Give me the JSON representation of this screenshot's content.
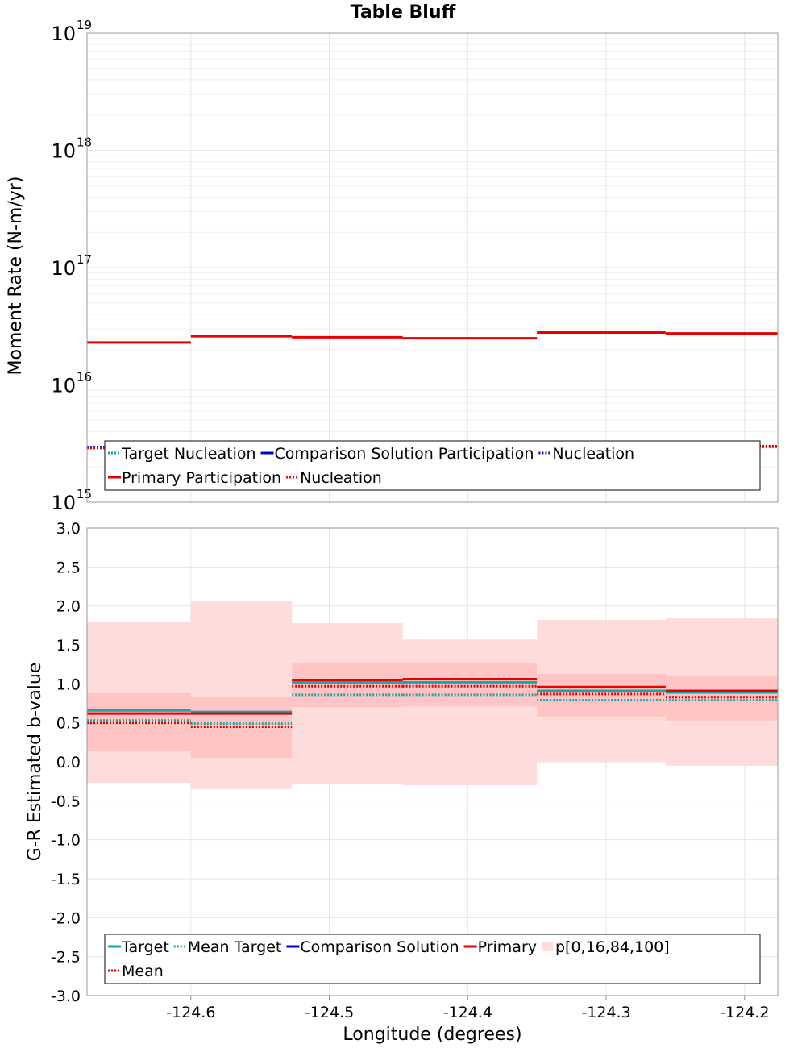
{
  "title": "Table Bluff",
  "colors": {
    "target": "#1aa4a4",
    "comparison": "#0000cc",
    "primary": "#e60000",
    "band_outer": "#ffdcdc",
    "band_inner": "#ffc4c4",
    "grid": "#e6e6e6"
  },
  "chart_data": [
    {
      "type": "line",
      "ylabel": "Moment Rate (N-m/yr)",
      "y_scale": "log",
      "ylim": [
        1000000000000000.0,
        1e+19
      ],
      "y_ticks": [
        {
          "base": "10",
          "exp": "15",
          "value": 1000000000000000.0
        },
        {
          "base": "10",
          "exp": "16",
          "value": 1e+16
        },
        {
          "base": "10",
          "exp": "17",
          "value": 1e+17
        },
        {
          "base": "10",
          "exp": "18",
          "value": 1e+18
        },
        {
          "base": "10",
          "exp": "19",
          "value": 1e+19
        }
      ],
      "xlim": [
        -124.675,
        -124.176
      ],
      "bins": [
        [
          -124.675,
          -124.6
        ],
        [
          -124.6,
          -124.527
        ],
        [
          -124.527,
          -124.447
        ],
        [
          -124.447,
          -124.35
        ],
        [
          -124.35,
          -124.257
        ],
        [
          -124.257,
          -124.176
        ]
      ],
      "series": [
        {
          "name": "Target Nucleation",
          "style": "dotted",
          "color": "target",
          "values": [
            2900000000000000.0,
            2900000000000000.0,
            2950000000000000.0,
            2950000000000000.0,
            3000000000000000.0,
            2950000000000000.0
          ]
        },
        {
          "name": "Comparison Solution Participation",
          "style": "solid",
          "color": "comparison",
          "values": [
            null,
            null,
            null,
            null,
            null,
            null
          ]
        },
        {
          "name": "Nucleation",
          "style": "dotted",
          "color": "comparison",
          "values": [
            2950000000000000.0,
            3000000000000000.0,
            3000000000000000.0,
            3050000000000000.0,
            3100000000000000.0,
            3000000000000000.0
          ]
        },
        {
          "name": "Primary Participation",
          "style": "solid",
          "color": "primary",
          "values": [
            2.3e+16,
            2.6e+16,
            2.55e+16,
            2.5e+16,
            2.8e+16,
            2.75e+16
          ]
        },
        {
          "name": "Nucleation",
          "style": "dotted",
          "color": "primary",
          "values": [
            2900000000000000.0,
            3250000000000000.0,
            3250000000000000.0,
            3000000000000000.0,
            3000000000000000.0,
            3000000000000000.0
          ]
        }
      ],
      "legend": {
        "placement": "bottom",
        "rows": [
          [
            {
              "label": "Target Nucleation",
              "style": "dotted",
              "color": "target"
            },
            {
              "label": "Comparison Solution Participation",
              "style": "solid",
              "color": "comparison"
            },
            {
              "label": "Nucleation",
              "style": "dotted",
              "color": "comparison"
            }
          ],
          [
            {
              "label": "Primary Participation",
              "style": "solid",
              "color": "primary"
            },
            {
              "label": "Nucleation",
              "style": "dotted",
              "color": "primary"
            }
          ]
        ]
      }
    },
    {
      "type": "line",
      "ylabel": "G-R Estimated b-value",
      "xlabel": "Longitude (degrees)",
      "ylim": [
        -3.0,
        3.0
      ],
      "y_ticks": [
        "3.0",
        "2.5",
        "2.0",
        "1.5",
        "1.0",
        "0.5",
        "0.0",
        "-0.5",
        "-1.0",
        "-1.5",
        "-2.0",
        "-2.5",
        "-3.0"
      ],
      "xlim": [
        -124.675,
        -124.176
      ],
      "x_ticks": [
        "-124.6",
        "-124.5",
        "-124.4",
        "-124.3",
        "-124.2"
      ],
      "bins": [
        [
          -124.675,
          -124.6
        ],
        [
          -124.6,
          -124.527
        ],
        [
          -124.527,
          -124.447
        ],
        [
          -124.447,
          -124.35
        ],
        [
          -124.35,
          -124.257
        ],
        [
          -124.257,
          -124.176
        ]
      ],
      "percentiles": {
        "p0": [
          -0.27,
          -0.35,
          -0.29,
          -0.3,
          0.0,
          -0.05
        ],
        "p16": [
          0.14,
          0.05,
          0.7,
          0.71,
          0.58,
          0.53
        ],
        "p84": [
          0.88,
          0.84,
          1.26,
          1.26,
          1.13,
          1.11
        ],
        "p100": [
          1.8,
          2.06,
          1.78,
          1.57,
          1.82,
          1.84
        ]
      },
      "series": [
        {
          "name": "Target",
          "style": "solid",
          "color": "target",
          "values": [
            0.66,
            0.64,
            1.02,
            1.02,
            0.91,
            0.89
          ]
        },
        {
          "name": "Mean Target",
          "style": "dotted",
          "color": "target",
          "values": [
            0.53,
            0.49,
            0.86,
            0.86,
            0.79,
            0.79
          ]
        },
        {
          "name": "Comparison Solution",
          "style": "solid",
          "color": "comparison",
          "values": [
            null,
            null,
            null,
            null,
            null,
            null
          ]
        },
        {
          "name": "Primary",
          "style": "solid",
          "color": "primary",
          "values": [
            0.62,
            0.62,
            1.05,
            1.06,
            0.96,
            0.91
          ]
        },
        {
          "name": "Mean",
          "style": "dotted",
          "color": "primary",
          "values": [
            0.5,
            0.45,
            0.97,
            0.97,
            0.87,
            0.83
          ]
        }
      ],
      "legend": {
        "placement": "bottom",
        "rows": [
          [
            {
              "label": "Target",
              "style": "solid",
              "color": "target"
            },
            {
              "label": "Mean Target",
              "style": "dotted",
              "color": "target"
            },
            {
              "label": "Comparison Solution",
              "style": "solid",
              "color": "comparison"
            },
            {
              "label": "Primary",
              "style": "solid",
              "color": "primary"
            },
            {
              "label": "p[0,16,84,100]",
              "style": "band",
              "color": "band_outer"
            }
          ],
          [
            {
              "label": "Mean",
              "style": "dotted",
              "color": "primary"
            }
          ]
        ]
      }
    }
  ]
}
